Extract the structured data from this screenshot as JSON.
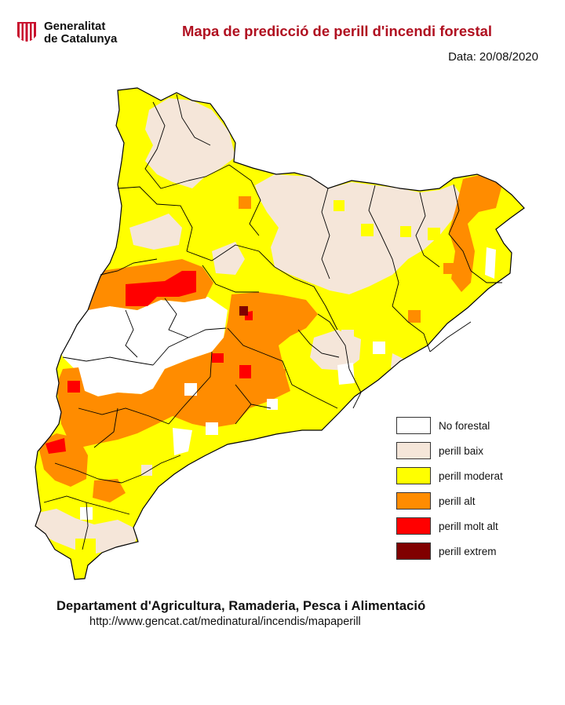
{
  "header": {
    "org_line1": "Generalitat",
    "org_line2": "de Catalunya",
    "title": "Mapa de predicció de perill d'incendi forestal",
    "date_label": "Data:",
    "date_value": "20/08/2020"
  },
  "legend": [
    {
      "label": "No forestal",
      "color": "#ffffff"
    },
    {
      "label": "perill baix",
      "color": "#f5e6d9"
    },
    {
      "label": "perill moderat",
      "color": "#ffff00"
    },
    {
      "label": "perill alt",
      "color": "#ff8c00"
    },
    {
      "label": "perill molt alt",
      "color": "#ff0000"
    },
    {
      "label": "perill extrem",
      "color": "#800000"
    }
  ],
  "footer": {
    "department": "Departament d'Agricultura, Ramaderia, Pesca i Alimentació",
    "url": "http://www.gencat.cat/medinatural/incendis/mapaperill"
  },
  "map_icon": "catalonia-region-map",
  "logo_icon": "generalitat-senyera-logo"
}
